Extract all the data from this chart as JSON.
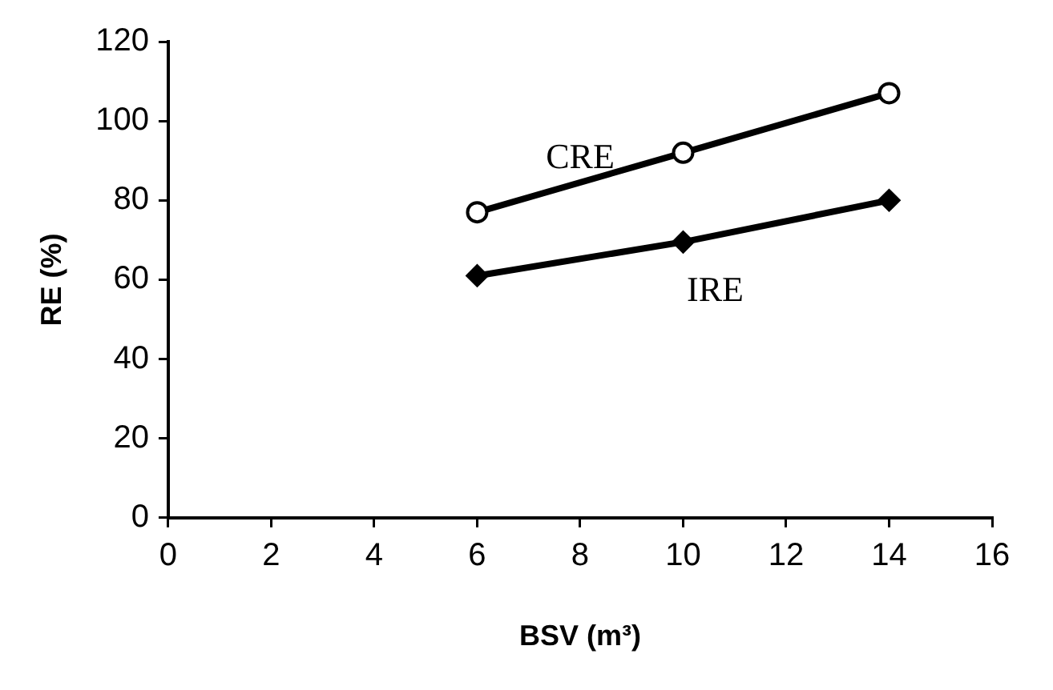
{
  "chart_data": {
    "type": "line",
    "xlabel": "BSV (m³)",
    "ylabel": "RE (%)",
    "xlim": [
      0,
      16
    ],
    "xticks": [
      0,
      2,
      4,
      6,
      8,
      10,
      12,
      14,
      16
    ],
    "ylim": [
      0,
      120
    ],
    "yticks": [
      0,
      20,
      40,
      60,
      80,
      100,
      120
    ],
    "grid": false,
    "legend": false,
    "series": [
      {
        "name": "CRE",
        "color": "#000000",
        "x": [
          6,
          10,
          14
        ],
        "values": [
          77,
          92,
          107
        ],
        "marker": "circle"
      },
      {
        "name": "IRE",
        "color": "#000000",
        "x": [
          6,
          10,
          14
        ],
        "values": [
          61,
          69.5,
          80
        ],
        "marker": "diamond"
      }
    ]
  }
}
